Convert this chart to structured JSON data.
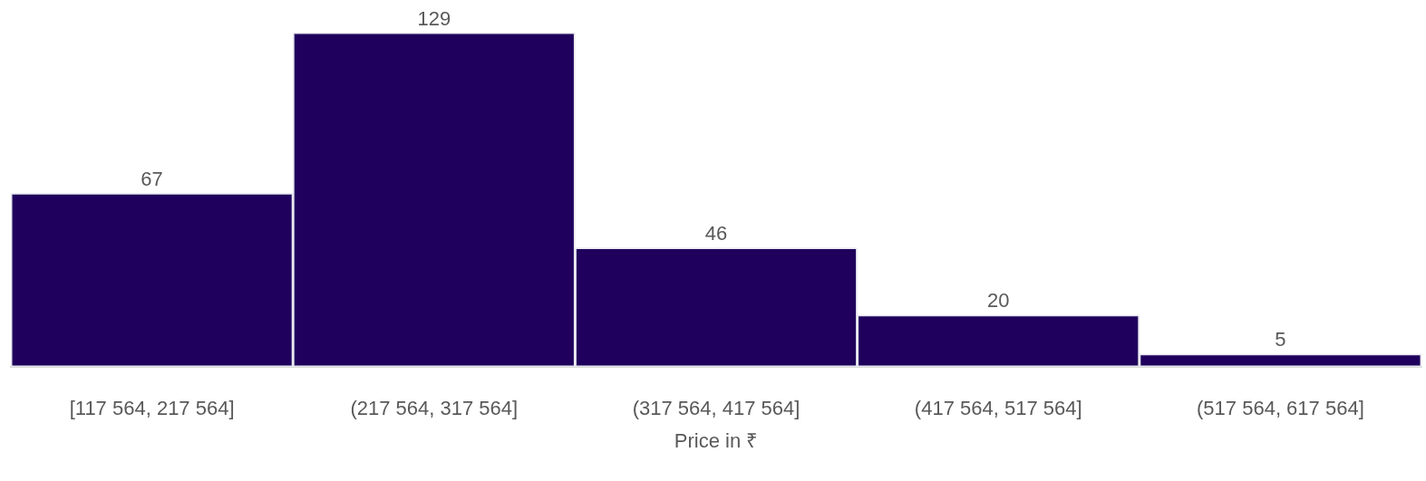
{
  "chart_data": {
    "type": "bar",
    "xlabel": "Price in ₹",
    "categories": [
      "[117 564, 217 564]",
      "(217 564, 317 564]",
      "(317 564, 417 564]",
      "(417 564, 517 564]",
      "(517 564, 617 564]"
    ],
    "values": [
      67,
      129,
      46,
      20,
      5
    ],
    "color": "#1f005c",
    "data_labels": true
  }
}
